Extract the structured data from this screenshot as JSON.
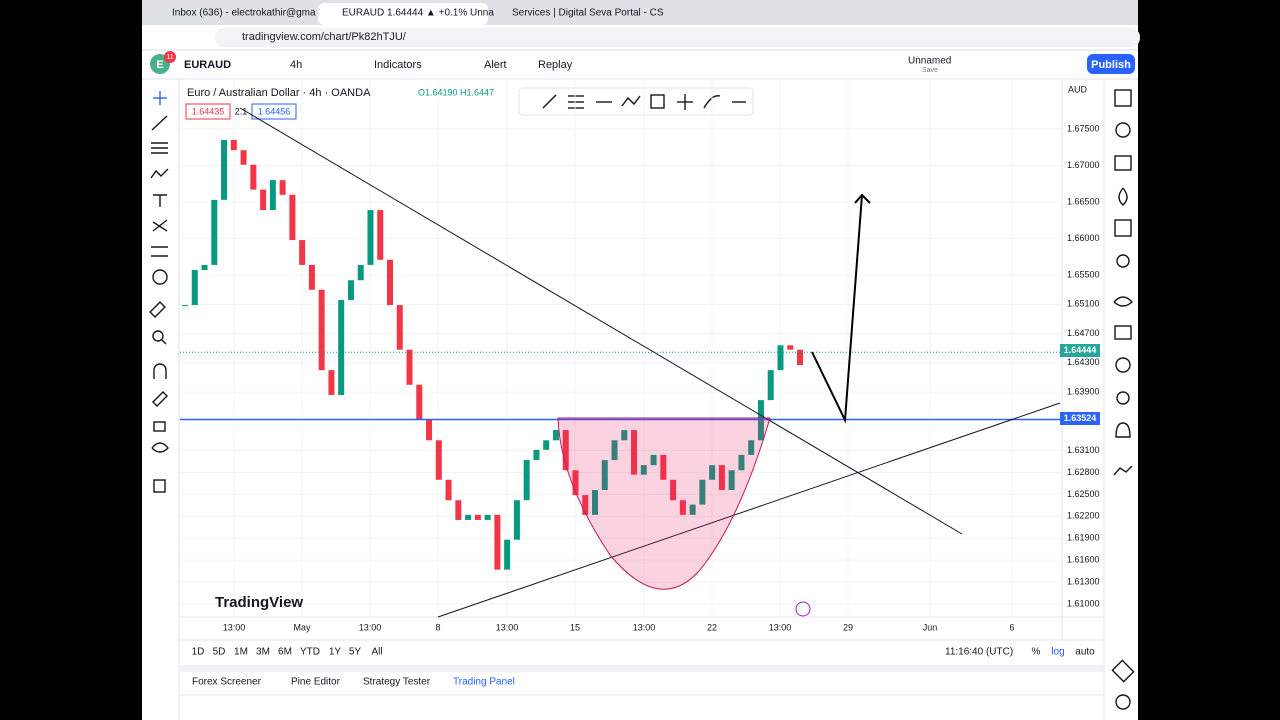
{
  "browser": {
    "tabs": [
      "Inbox (636) - electrokathir@gma",
      "EURAUD 1.64444 ▲ +0.1% Unna",
      "Services | Digital Seva Portal - CS"
    ],
    "url": "tradingview.com/chart/Pk82hTJU/"
  },
  "toolbar": {
    "avatar": "E",
    "badge": "11",
    "symbol": "EURAUD",
    "interval": "4h",
    "indicators": "Indicators",
    "alert": "Alert",
    "replay": "Replay",
    "layout": "Unnamed",
    "save": "Save",
    "publish": "Publish"
  },
  "legend": {
    "title": "Euro / Australian Dollar · 4h · OANDA",
    "open": "O1.64190",
    "high": "H1.6447",
    "bid": "1.64435",
    "spread": "2.1",
    "ask": "1.64456"
  },
  "chart": {
    "currency": "AUD",
    "watermark": "TradingView",
    "yticks": [
      {
        "value": 1.675,
        "label": "1.67500"
      },
      {
        "value": 1.67,
        "label": "1.67000"
      },
      {
        "value": 1.665,
        "label": "1.66500"
      },
      {
        "value": 1.66,
        "label": "1.66000"
      },
      {
        "value": 1.655,
        "label": "1.65500"
      },
      {
        "value": 1.651,
        "label": "1.65100"
      },
      {
        "value": 1.647,
        "label": "1.64700"
      },
      {
        "value": 1.643,
        "label": "1.64300"
      },
      {
        "value": 1.639,
        "label": "1.63900"
      },
      {
        "value": 1.631,
        "label": "1.63100"
      },
      {
        "value": 1.628,
        "label": "1.62800"
      },
      {
        "value": 1.625,
        "label": "1.62500"
      },
      {
        "value": 1.622,
        "label": "1.62200"
      },
      {
        "value": 1.619,
        "label": "1.61900"
      },
      {
        "value": 1.616,
        "label": "1.61600"
      },
      {
        "value": 1.613,
        "label": "1.61300"
      },
      {
        "value": 1.61,
        "label": "1.61000"
      }
    ],
    "last_price": 1.64444,
    "level": 1.63524,
    "xticks": [
      "13:00",
      "May",
      "13:00",
      "8",
      "13:00",
      "15",
      "13:00",
      "22",
      "13:00",
      "29",
      "Jun",
      "6"
    ],
    "closes": [
      1.6509,
      1.6557,
      1.6564,
      1.6653,
      1.6735,
      1.6721,
      1.6701,
      1.6667,
      1.6639,
      1.668,
      1.666,
      1.6598,
      1.6564,
      1.653,
      1.642,
      1.6386,
      1.6516,
      1.6543,
      1.6564,
      1.6639,
      1.6571,
      1.6509,
      1.6448,
      1.64,
      1.6352,
      1.6324,
      1.627,
      1.6242,
      1.6215,
      1.6222,
      1.6215,
      1.6222,
      1.6147,
      1.6188,
      1.6242,
      1.6297,
      1.6311,
      1.6324,
      1.6338,
      1.6283,
      1.6249,
      1.6222,
      1.6256,
      1.6297,
      1.6324,
      1.6338,
      1.6277,
      1.629,
      1.6304,
      1.627,
      1.6242,
      1.6222,
      1.6236,
      1.627,
      1.629,
      1.6256,
      1.6283,
      1.6304,
      1.6324,
      1.6379,
      1.642,
      1.6454,
      1.6448,
      1.6427
    ]
  },
  "bottom": {
    "ranges": [
      "1D",
      "5D",
      "1M",
      "3M",
      "6M",
      "YTD",
      "1Y",
      "5Y",
      "All"
    ],
    "clock": "11:16:40 (UTC)",
    "percent": "%",
    "log": "log",
    "auto": "auto"
  },
  "panel": {
    "tabs": [
      "Forex Screener",
      "Pine Editor",
      "Strategy Tester",
      "Trading Panel"
    ]
  }
}
